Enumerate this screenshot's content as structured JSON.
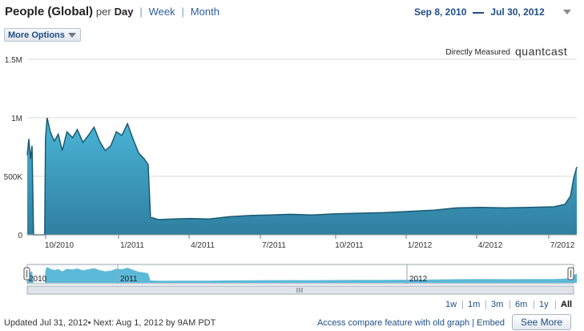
{
  "header": {
    "metric": "People (Global)",
    "per": "per",
    "current_period": "Day",
    "links": [
      "Week",
      "Month"
    ],
    "separator": "|"
  },
  "date_range": {
    "start": "Sep 8, 2010",
    "end": "Jul 30, 2012"
  },
  "more_options": "More Options",
  "badge": {
    "text": "Directly Measured",
    "logo": "quantcast"
  },
  "timeframes": [
    "1w",
    "1m",
    "3m",
    "6m",
    "1y",
    "All"
  ],
  "timeframe_active": "All",
  "footer": {
    "updated": "Updated Jul 31, 2012• Next: Aug 1, 2012 by 9AM PDT",
    "compare": "Access compare feature with old graph | Embed",
    "see_more": "See More"
  },
  "navigator": {
    "labels": [
      "2010",
      "2011",
      "2012"
    ],
    "handle_icon": "grip-lines-icon"
  },
  "colors": {
    "area_fill": "#3a9dbf",
    "area_line": "#1a5a74",
    "grid": "#d8d8d8",
    "link": "#1f4e86"
  },
  "chart_data": {
    "type": "area",
    "title": "",
    "xlabel": "",
    "ylabel": "",
    "ylim": [
      0,
      1500000
    ],
    "yticks": [
      0,
      500000,
      1000000,
      1500000
    ],
    "ytick_labels": [
      "0",
      "500K",
      "1M",
      "1.5M"
    ],
    "xtick_labels": [
      "10/2010",
      "1/2011",
      "4/2011",
      "7/2011",
      "10/2011",
      "1/2012",
      "4/2012",
      "7/2012"
    ],
    "xlim": [
      "2010-09-08",
      "2012-07-30"
    ],
    "grid": true,
    "series": [
      {
        "values": [
          [
            "2010-09-08",
            680000
          ],
          [
            "2010-09-10",
            820000
          ],
          [
            "2010-09-12",
            650000
          ],
          [
            "2010-09-14",
            760000
          ],
          [
            "2010-09-16",
            0
          ],
          [
            "2010-09-30",
            0
          ],
          [
            "2010-10-01",
            820000
          ],
          [
            "2010-10-03",
            1000000
          ],
          [
            "2010-10-07",
            880000
          ],
          [
            "2010-10-12",
            800000
          ],
          [
            "2010-10-17",
            860000
          ],
          [
            "2010-10-22",
            720000
          ],
          [
            "2010-10-28",
            880000
          ],
          [
            "2010-11-04",
            830000
          ],
          [
            "2010-11-10",
            900000
          ],
          [
            "2010-11-17",
            790000
          ],
          [
            "2010-11-24",
            850000
          ],
          [
            "2010-12-01",
            920000
          ],
          [
            "2010-12-08",
            800000
          ],
          [
            "2010-12-15",
            720000
          ],
          [
            "2010-12-22",
            760000
          ],
          [
            "2010-12-29",
            880000
          ],
          [
            "2011-01-05",
            850000
          ],
          [
            "2011-01-12",
            950000
          ],
          [
            "2011-01-19",
            820000
          ],
          [
            "2011-01-26",
            700000
          ],
          [
            "2011-02-02",
            650000
          ],
          [
            "2011-02-07",
            600000
          ],
          [
            "2011-02-10",
            150000
          ],
          [
            "2011-02-20",
            130000
          ],
          [
            "2011-03-10",
            135000
          ],
          [
            "2011-04-01",
            140000
          ],
          [
            "2011-04-25",
            135000
          ],
          [
            "2011-05-20",
            155000
          ],
          [
            "2011-06-15",
            165000
          ],
          [
            "2011-07-10",
            170000
          ],
          [
            "2011-08-05",
            175000
          ],
          [
            "2011-09-01",
            170000
          ],
          [
            "2011-10-01",
            180000
          ],
          [
            "2011-11-01",
            185000
          ],
          [
            "2011-12-01",
            190000
          ],
          [
            "2012-01-01",
            200000
          ],
          [
            "2012-02-01",
            210000
          ],
          [
            "2012-03-01",
            230000
          ],
          [
            "2012-04-01",
            235000
          ],
          [
            "2012-05-01",
            230000
          ],
          [
            "2012-06-01",
            235000
          ],
          [
            "2012-07-01",
            240000
          ],
          [
            "2012-07-15",
            260000
          ],
          [
            "2012-07-22",
            330000
          ],
          [
            "2012-07-26",
            480000
          ],
          [
            "2012-07-30",
            580000
          ]
        ]
      }
    ]
  }
}
